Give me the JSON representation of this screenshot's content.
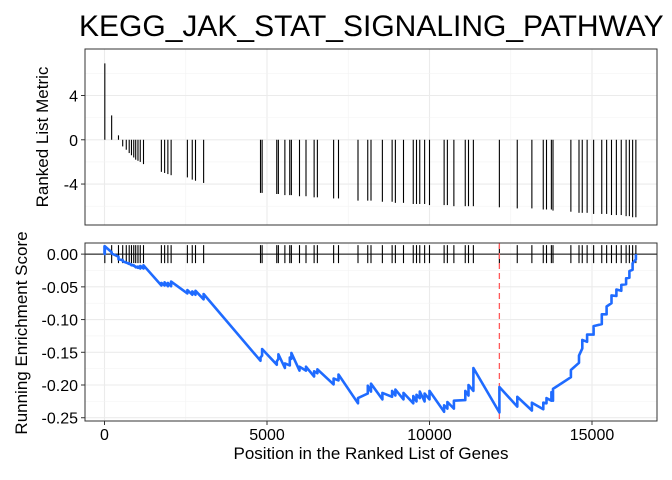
{
  "chart_data": [
    {
      "type": "bar",
      "panel": "ranked-list-metric",
      "title": "KEGG_JAK_STAT_SIGNALING_PATHWAY",
      "ylabel": "Ranked List Metric",
      "xlim": [
        -600,
        17000
      ],
      "ylim": [
        -7.7,
        8.2
      ],
      "yticks": [
        4,
        0,
        -4
      ],
      "ytick_labels": [
        "4",
        "0",
        "-4"
      ],
      "grid": true,
      "x": [
        10,
        220,
        430,
        560,
        670,
        760,
        830,
        900,
        960,
        1030,
        1100,
        1200,
        1750,
        1850,
        1950,
        2050,
        2550,
        2700,
        2800,
        3050,
        4800,
        4850,
        5300,
        5350,
        5550,
        5700,
        5750,
        6000,
        6200,
        6450,
        6550,
        7050,
        7200,
        7800,
        8100,
        8200,
        8550,
        8850,
        8950,
        9200,
        9500,
        9600,
        9700,
        9850,
        10000,
        10450,
        10550,
        10750,
        11100,
        11200,
        11350,
        12150,
        12700,
        13150,
        13500,
        13600,
        13750,
        13800,
        14350,
        14600,
        14700,
        14850,
        15050,
        15300,
        15450,
        15600,
        15750,
        15900,
        16050,
        16150,
        16250,
        16350
      ],
      "values": [
        6.9,
        2.2,
        0.4,
        -0.6,
        -0.9,
        -1.2,
        -1.4,
        -1.6,
        -1.8,
        -1.9,
        -2.0,
        -2.2,
        -2.9,
        -3.0,
        -3.1,
        -3.2,
        -3.4,
        -3.6,
        -3.7,
        -3.9,
        -4.8,
        -4.8,
        -4.9,
        -4.9,
        -5.0,
        -5.0,
        -5.0,
        -5.1,
        -5.1,
        -5.2,
        -5.2,
        -5.3,
        -5.3,
        -5.5,
        -5.5,
        -5.5,
        -5.6,
        -5.6,
        -5.7,
        -5.7,
        -5.8,
        -5.8,
        -5.8,
        -5.8,
        -5.9,
        -5.9,
        -5.9,
        -6.0,
        -6.0,
        -6.0,
        -6.0,
        -6.1,
        -6.2,
        -6.2,
        -6.3,
        -6.3,
        -6.3,
        -6.4,
        -6.5,
        -6.6,
        -6.6,
        -6.6,
        -6.7,
        -6.7,
        -6.7,
        -6.8,
        -6.8,
        -6.8,
        -6.9,
        -6.9,
        -7.0,
        -7.0
      ]
    },
    {
      "type": "line",
      "panel": "running-enrichment-score",
      "ylabel": "Running Enrichment Score",
      "xlabel": "Position in the Ranked List of Genes",
      "xlim": [
        -600,
        17000
      ],
      "ylim": [
        -0.255,
        0.017
      ],
      "xticks": [
        0,
        5000,
        10000,
        15000
      ],
      "xtick_labels": [
        "0",
        "5000",
        "10000",
        "15000"
      ],
      "yticks": [
        0.0,
        -0.05,
        -0.1,
        -0.15,
        -0.2,
        -0.25
      ],
      "ytick_labels": [
        "0.00",
        "-0.05",
        "-0.10",
        "-0.15",
        "-0.20",
        "-0.25"
      ],
      "grid": true,
      "line_color": "#1f6bff",
      "zero_line_color": "#000000",
      "peak_marker": {
        "x": 12150,
        "color": "#ff5a5a",
        "style": "dashed"
      },
      "hit_positions": [
        10,
        220,
        430,
        560,
        670,
        760,
        830,
        900,
        960,
        1030,
        1100,
        1200,
        1750,
        1850,
        1950,
        2050,
        2550,
        2700,
        2800,
        3050,
        4800,
        4850,
        5300,
        5350,
        5550,
        5700,
        5750,
        6000,
        6200,
        6450,
        6550,
        7050,
        7200,
        7800,
        8100,
        8200,
        8550,
        8850,
        8950,
        9200,
        9500,
        9600,
        9700,
        9850,
        10000,
        10450,
        10550,
        10750,
        11100,
        11200,
        11350,
        12150,
        12700,
        13150,
        13500,
        13600,
        13750,
        13800,
        14350,
        14600,
        14700,
        14850,
        15050,
        15300,
        15450,
        15600,
        15750,
        15900,
        16050,
        16150,
        16250,
        16350
      ],
      "series": [
        {
          "x": [
            0,
            10,
            220,
            430,
            560,
            670,
            760,
            830,
            900,
            960,
            1030,
            1100,
            1200,
            1750,
            1850,
            1950,
            2050,
            2550,
            2700,
            2800,
            3050,
            4800,
            4850,
            5300,
            5350,
            5550,
            5700,
            5750,
            6000,
            6200,
            6450,
            6550,
            7050,
            7200,
            7800,
            8100,
            8200,
            8550,
            8850,
            8950,
            9200,
            9500,
            9600,
            9700,
            9850,
            10000,
            10450,
            10550,
            10750,
            11100,
            11200,
            11350,
            12150,
            12700,
            13150,
            13500,
            13600,
            13750,
            13800,
            14350,
            14600,
            14700,
            14850,
            15050,
            15300,
            15450,
            15600,
            15750,
            15900,
            16050,
            16150,
            16250,
            16350
          ],
          "before": [
            0.0,
            0.0,
            0.003,
            -0.004,
            -0.009,
            -0.013,
            -0.015,
            -0.017,
            -0.018,
            -0.02,
            -0.021,
            -0.022,
            -0.022,
            -0.048,
            -0.048,
            -0.049,
            -0.049,
            -0.06,
            -0.062,
            -0.062,
            -0.069,
            -0.163,
            -0.155,
            -0.169,
            -0.16,
            -0.174,
            -0.17,
            -0.16,
            -0.178,
            -0.178,
            -0.187,
            -0.182,
            -0.199,
            -0.193,
            -0.228,
            -0.213,
            -0.21,
            -0.222,
            -0.218,
            -0.216,
            -0.222,
            -0.228,
            -0.225,
            -0.22,
            -0.225,
            -0.222,
            -0.241,
            -0.236,
            -0.236,
            -0.223,
            -0.216,
            -0.209,
            -0.242,
            -0.233,
            -0.239,
            -0.237,
            -0.228,
            -0.224,
            -0.224,
            -0.188,
            -0.166,
            -0.144,
            -0.134,
            -0.123,
            -0.107,
            -0.092,
            -0.075,
            -0.064,
            -0.056,
            -0.046,
            -0.036,
            -0.024,
            -0.008
          ],
          "after": [
            0.012,
            0.012,
            0.001,
            -0.008,
            -0.011,
            -0.013,
            -0.014,
            -0.016,
            -0.017,
            -0.019,
            -0.019,
            -0.018,
            -0.017,
            -0.044,
            -0.043,
            -0.044,
            -0.042,
            -0.055,
            -0.057,
            -0.056,
            -0.061,
            -0.158,
            -0.145,
            -0.164,
            -0.153,
            -0.167,
            -0.158,
            -0.151,
            -0.172,
            -0.172,
            -0.179,
            -0.176,
            -0.19,
            -0.184,
            -0.22,
            -0.201,
            -0.198,
            -0.212,
            -0.209,
            -0.207,
            -0.212,
            -0.217,
            -0.215,
            -0.21,
            -0.213,
            -0.209,
            -0.231,
            -0.226,
            -0.224,
            -0.209,
            -0.2,
            -0.174,
            -0.203,
            -0.218,
            -0.227,
            -0.227,
            -0.22,
            -0.211,
            -0.206,
            -0.177,
            -0.155,
            -0.131,
            -0.123,
            -0.11,
            -0.092,
            -0.08,
            -0.063,
            -0.054,
            -0.047,
            -0.037,
            -0.026,
            -0.014,
            0.0
          ]
        }
      ]
    }
  ]
}
